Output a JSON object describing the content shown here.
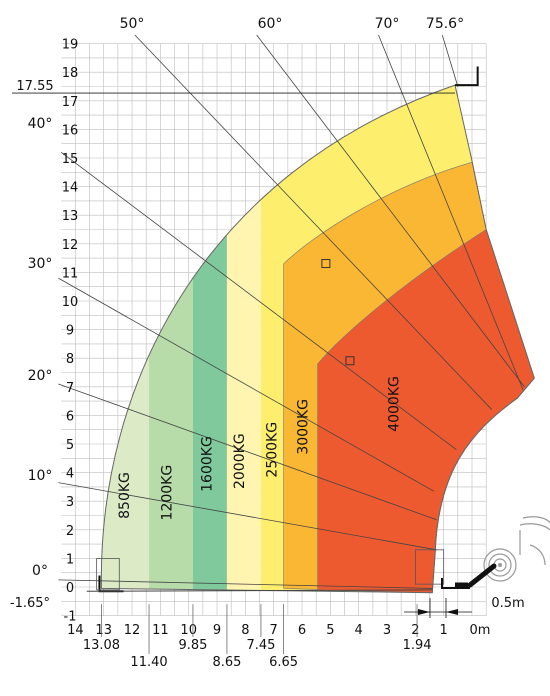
{
  "chart_data": {
    "type": "load-chart",
    "title": "",
    "x_unit": "m",
    "x_ticks": [
      "14",
      "13",
      "12",
      "11",
      "10",
      "9",
      "8",
      "7",
      "6",
      "5",
      "4",
      "3",
      "2",
      "1",
      "0m"
    ],
    "y_ticks": [
      "19",
      "18",
      "17",
      "16",
      "15",
      "14",
      "13",
      "12",
      "11",
      "10",
      "9",
      "8",
      "7",
      "6",
      "5",
      "4",
      "3",
      "2",
      "1",
      "0",
      "-1"
    ],
    "x_markers": [
      {
        "value": 13.08,
        "label": "13.08"
      },
      {
        "value": 11.4,
        "label": "11.40"
      },
      {
        "value": 9.85,
        "label": "9.85"
      },
      {
        "value": 8.65,
        "label": "8.65"
      },
      {
        "value": 7.45,
        "label": "7.45"
      },
      {
        "value": 6.65,
        "label": "6.65"
      },
      {
        "value": 1.94,
        "label": "1.94"
      }
    ],
    "y_markers": [
      {
        "value": 17.55,
        "label": "17.55"
      },
      {
        "value": -1.65,
        "label": "-1.65°"
      }
    ],
    "offset_label": "0.5m",
    "boom_angles": [
      {
        "angle": 0,
        "label": "0°"
      },
      {
        "angle": 10,
        "label": "10°"
      },
      {
        "angle": 20,
        "label": "20°"
      },
      {
        "angle": 30,
        "label": "30°"
      },
      {
        "angle": 40,
        "label": "40°"
      },
      {
        "angle": 50,
        "label": "50°"
      },
      {
        "angle": 60,
        "label": "60°"
      },
      {
        "angle": 70,
        "label": "70°"
      },
      {
        "angle": 75.6,
        "label": "75.6°"
      }
    ],
    "zones": [
      {
        "label": "850KG",
        "color": "#dcebc6"
      },
      {
        "label": "1200KG",
        "color": "#b7dba9"
      },
      {
        "label": "1600KG",
        "color": "#80c99c"
      },
      {
        "label": "2000KG",
        "color": "#fff5b0"
      },
      {
        "label": "2500KG",
        "color": "#fdee6e"
      },
      {
        "label": "3000KG",
        "color": "#fab733"
      },
      {
        "label": "4000KG",
        "color": "#ee5a30"
      }
    ]
  }
}
